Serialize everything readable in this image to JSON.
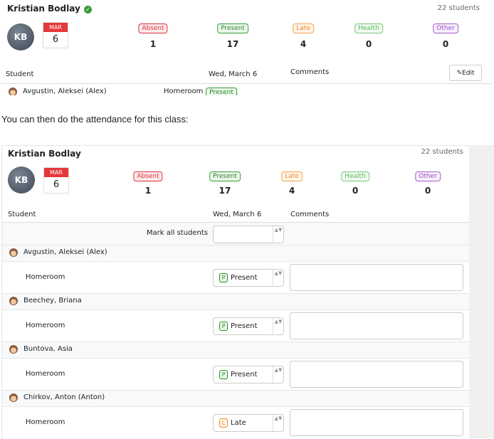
{
  "top_panel": {
    "teacher": "Kristian Bodlay",
    "student_count": "22 students",
    "initials": "KB",
    "month": "MAR",
    "day": "6",
    "statuses": [
      {
        "label": "Absent",
        "count": 1
      },
      {
        "label": "Present",
        "count": 17
      },
      {
        "label": "Late",
        "count": 4
      },
      {
        "label": "Health",
        "count": 0
      },
      {
        "label": "Other",
        "count": 0
      }
    ],
    "columns": {
      "student": "Student",
      "date": "Wed, March 6",
      "comments": "Comments"
    },
    "edit": "Edit",
    "partial_row": {
      "name": "Avgustin, Aleksei (Alex)",
      "class": "Homeroom",
      "status": "Present"
    }
  },
  "caption": "You can then do the attendance for this class:",
  "bottom_panel": {
    "teacher": "Kristian Bodlay",
    "student_count": "22 students",
    "initials": "KB",
    "month": "MAR",
    "day": "6",
    "statuses": [
      {
        "label": "Absent",
        "count": 1
      },
      {
        "label": "Present",
        "count": 17
      },
      {
        "label": "Late",
        "count": 4
      },
      {
        "label": "Health",
        "count": 0
      },
      {
        "label": "Other",
        "count": 0
      }
    ],
    "columns": {
      "student": "Student",
      "date": "Wed, March 6",
      "comments": "Comments"
    },
    "mark_all": "Mark all students",
    "students": [
      {
        "name": "Avgustin, Aleksei (Alex)",
        "class": "Homeroom",
        "status_letter": "P",
        "status": "Present"
      },
      {
        "name": "Beechey, Briana",
        "class": "Homeroom",
        "status_letter": "P",
        "status": "Present"
      },
      {
        "name": "Buntova, Asia",
        "class": "Homeroom",
        "status_letter": "P",
        "status": "Present"
      },
      {
        "name": "Chirkov, Anton (Anton)",
        "class": "Homeroom",
        "status_letter": "L",
        "status": "Late"
      }
    ]
  }
}
